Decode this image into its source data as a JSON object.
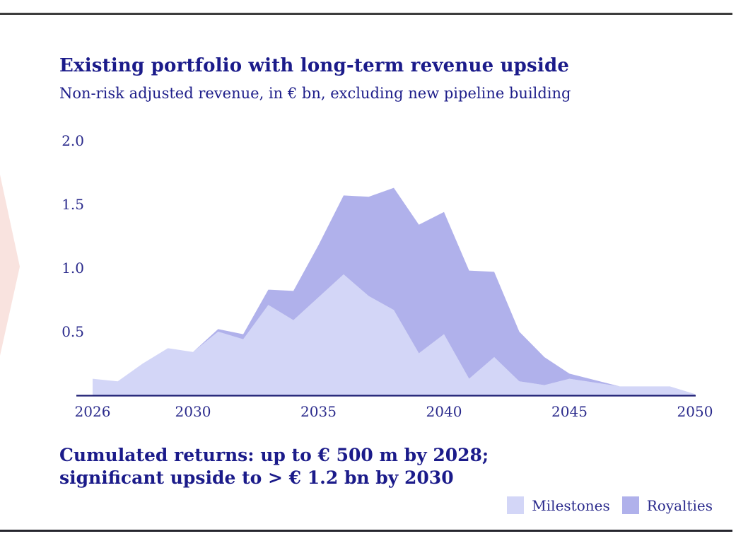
{
  "page": {
    "title": "Existing portfolio with long-term revenue upside",
    "subtitle": "Non-risk adjusted revenue, in € bn, excluding new pipeline building",
    "callout_line1": "Cumulated returns: up to € 500 m by 2028;",
    "callout_line2": "significant upside to > € 1.2 bn by 2030"
  },
  "legend": {
    "items": [
      {
        "label": "Milestones",
        "color": "#d3d6f7"
      },
      {
        "label": "Royalties",
        "color": "#b0b1eb"
      }
    ]
  },
  "colors": {
    "text_navy": "#1b1b8a",
    "axis_line": "#1c1c72",
    "top_rule": "#3c3c3c",
    "bottom_rule": "#26262e",
    "chevron_pink": "#f9e3df"
  },
  "chart_data": {
    "type": "area",
    "stacked": true,
    "title": "Existing portfolio with long-term revenue upside",
    "subtitle": "Non-risk adjusted revenue, in € bn, excluding new pipeline building",
    "xlabel": "",
    "ylabel": "",
    "x": [
      2026,
      2027,
      2028,
      2029,
      2030,
      2031,
      2032,
      2033,
      2034,
      2035,
      2036,
      2037,
      2038,
      2039,
      2040,
      2041,
      2042,
      2043,
      2044,
      2045,
      2046,
      2047,
      2048,
      2049,
      2050
    ],
    "series": [
      {
        "name": "Milestones",
        "color": "#d3d6f7",
        "values": [
          0.13,
          0.11,
          0.25,
          0.37,
          0.34,
          0.5,
          0.44,
          0.71,
          0.59,
          0.77,
          0.95,
          0.78,
          0.67,
          0.33,
          0.48,
          0.13,
          0.3,
          0.11,
          0.08,
          0.13,
          0.1,
          0.07,
          0.07,
          0.07,
          0.01
        ]
      },
      {
        "name": "Royalties",
        "color": "#b0b1eb",
        "values": [
          0,
          0,
          0,
          0,
          0,
          0.02,
          0.04,
          0.12,
          0.23,
          0.41,
          0.62,
          0.78,
          0.96,
          1.01,
          0.96,
          0.85,
          0.67,
          0.39,
          0.22,
          0.04,
          0.02,
          0,
          0,
          0,
          0
        ]
      }
    ],
    "xticks": [
      {
        "value": 2026,
        "label": "2026"
      },
      {
        "value": 2030,
        "label": "2030"
      },
      {
        "value": 2035,
        "label": "2035"
      },
      {
        "value": 2040,
        "label": "2040"
      },
      {
        "value": 2045,
        "label": "2045"
      },
      {
        "value": 2050,
        "label": "2050"
      }
    ],
    "yticks": [
      {
        "value": 0.5,
        "label": "0.5"
      },
      {
        "value": 1.0,
        "label": "1.0"
      },
      {
        "value": 1.5,
        "label": "1.5"
      },
      {
        "value": 2.0,
        "label": "2.0"
      }
    ],
    "ylim": [
      0,
      2.2
    ],
    "grid": false,
    "legend_position": "bottom-right"
  }
}
